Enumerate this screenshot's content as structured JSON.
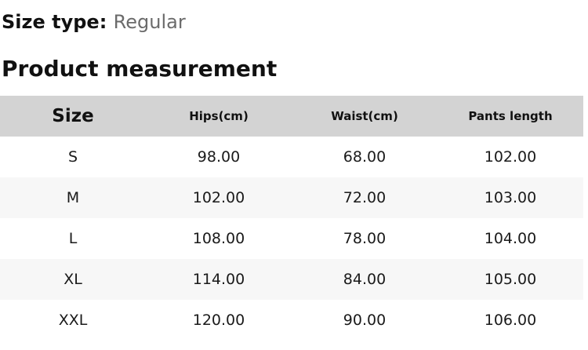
{
  "page": {
    "size_type_label": "Size type:",
    "size_type_value": "Regular",
    "section_title": "Product measurement"
  },
  "table": {
    "columns": [
      {
        "key": "size",
        "label": "Size"
      },
      {
        "key": "hips",
        "label": "Hips(cm)"
      },
      {
        "key": "waist",
        "label": "Waist(cm)"
      },
      {
        "key": "pants_length",
        "label": "Pants length"
      }
    ],
    "rows": [
      {
        "size": "S",
        "hips": "98.00",
        "waist": "68.00",
        "pants_length": "102.00"
      },
      {
        "size": "M",
        "hips": "102.00",
        "waist": "72.00",
        "pants_length": "103.00"
      },
      {
        "size": "L",
        "hips": "108.00",
        "waist": "78.00",
        "pants_length": "104.00"
      },
      {
        "size": "XL",
        "hips": "114.00",
        "waist": "84.00",
        "pants_length": "105.00"
      },
      {
        "size": "XXL",
        "hips": "120.00",
        "waist": "90.00",
        "pants_length": "106.00"
      }
    ]
  },
  "colors": {
    "header_bg": "#d3d3d3",
    "stripe_bg": "#f7f7f7",
    "heading_text": "#111111",
    "muted_text": "#6b6b6b",
    "cell_text": "#1a1a1a"
  }
}
